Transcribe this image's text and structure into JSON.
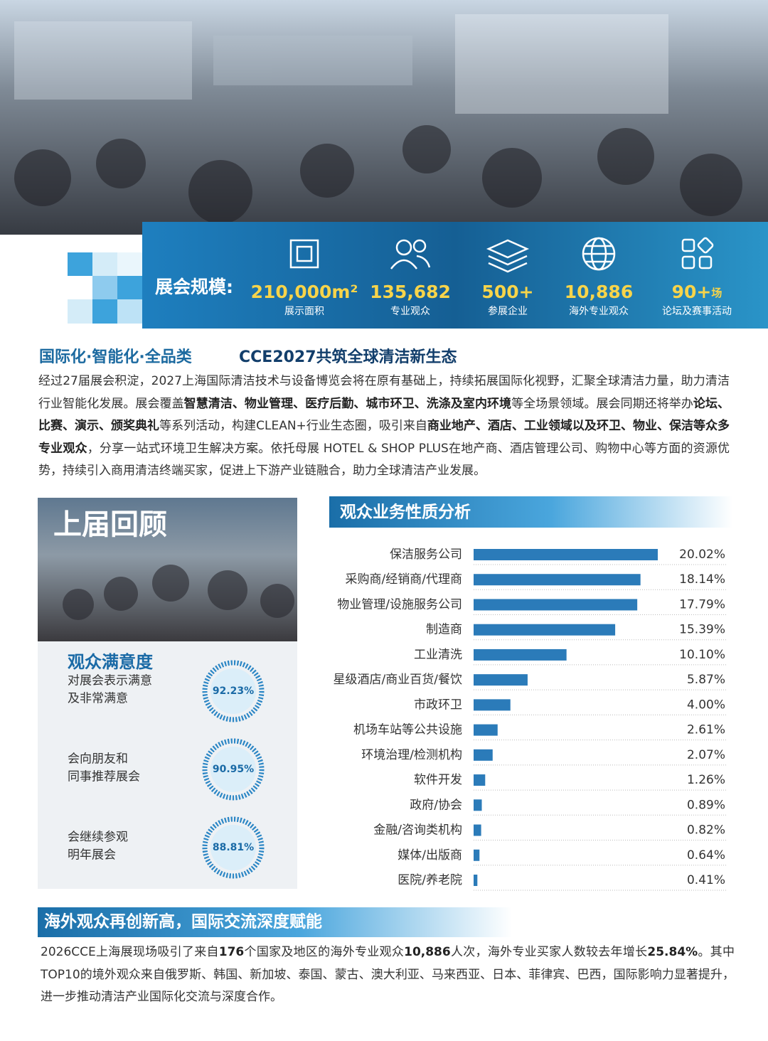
{
  "stats": {
    "label": "展会规模:",
    "items": [
      {
        "value": "210,000m²",
        "caption": "展示面积"
      },
      {
        "value": "135,682",
        "caption": "专业观众"
      },
      {
        "value": "500+",
        "caption": "参展企业"
      },
      {
        "value": "10,886",
        "caption": "海外专业观众"
      },
      {
        "value": "90+",
        "suffix": "场",
        "caption": "论坛及赛事活动"
      }
    ]
  },
  "intro": {
    "heading": "国际化·智能化·全品类",
    "subheading": "CCE2027共筑全球清洁新生态",
    "segments": [
      {
        "text": "经过27届展会积淀，2027上海国际清洁技术与设备博览会将在原有基础上，持续拓展国际化视野，汇聚全球清洁力量，助力清洁行业智能化发展。展会覆盖",
        "bold": false
      },
      {
        "text": "智慧清洁、物业管理、医疗后勤、城市环卫、洗涤及室内环境",
        "bold": true
      },
      {
        "text": "等全场景领域。展会同期还将举办",
        "bold": false
      },
      {
        "text": "论坛、比赛、演示、颁奖典礼",
        "bold": true
      },
      {
        "text": "等系列活动，构建CLEAN+行业生态圈，吸引来自",
        "bold": false
      },
      {
        "text": "商业地产、酒店、工业领域以及环卫、物业、保洁等众多专业观众",
        "bold": true
      },
      {
        "text": "，分享一站式环境卫生解决方案。依托母展 HOTEL & SHOP PLUS在地产商、酒店管理公司、购物中心等方面的资源优势，持续引入商用清洁终端买家，促进上下游产业链融合，助力全球清洁产业发展。",
        "bold": false
      }
    ]
  },
  "review": {
    "title": "上届回顾",
    "satisfaction_title": "观众满意度",
    "items": [
      {
        "lines": [
          "对展会表示满意",
          "及非常满意"
        ],
        "percent": "92.23%"
      },
      {
        "lines": [
          "会向朋友和",
          "同事推荐展会"
        ],
        "percent": "90.95%"
      },
      {
        "lines": [
          "会继续参观",
          "明年展会"
        ],
        "percent": "88.81%"
      }
    ]
  },
  "chart_data": {
    "type": "bar",
    "orientation": "horizontal",
    "title": "观众业务性质分析",
    "color": "#2b7bb9",
    "categories": [
      "保洁服务公司",
      "采购商/经销商/代理商",
      "物业管理/设施服务公司",
      "制造商",
      "工业清洗",
      "星级酒店/商业百货/餐饮",
      "市政环卫",
      "机场车站等公共设施",
      "环境治理/检测机构",
      "软件开发",
      "政府/协会",
      "金融/咨询类机构",
      "媒体/出版商",
      "医院/养老院"
    ],
    "values": [
      20.02,
      18.14,
      17.79,
      15.39,
      10.1,
      5.87,
      4.0,
      2.61,
      2.07,
      1.26,
      0.89,
      0.82,
      0.64,
      0.41
    ],
    "value_labels": [
      "20.02%",
      "18.14%",
      "17.79%",
      "15.39%",
      "10.10%",
      "5.87%",
      "4.00%",
      "2.61%",
      "2.07%",
      "1.26%",
      "0.89%",
      "0.82%",
      "0.64%",
      "0.41%"
    ]
  },
  "overseas": {
    "heading": "海外观众再创新高，国际交流深度赋能",
    "segments": [
      {
        "text": "2026CCE上海展现场吸引了来自",
        "bold": false
      },
      {
        "text": "176",
        "bold": true
      },
      {
        "text": "个国家及地区的海外专业观众",
        "bold": false
      },
      {
        "text": "10,886",
        "bold": true
      },
      {
        "text": "人次，海外专业买家人数较去年增长",
        "bold": false
      },
      {
        "text": "25.84%",
        "bold": true
      },
      {
        "text": "。其中TOP10的境外观众来自俄罗斯、韩国、新加坡、泰国、蒙古、澳大利亚、马来西亚、日本、菲律宾、巴西，国际影响力显著提升，进一步推动清洁产业国际化交流与深度合作。",
        "bold": false
      }
    ]
  }
}
